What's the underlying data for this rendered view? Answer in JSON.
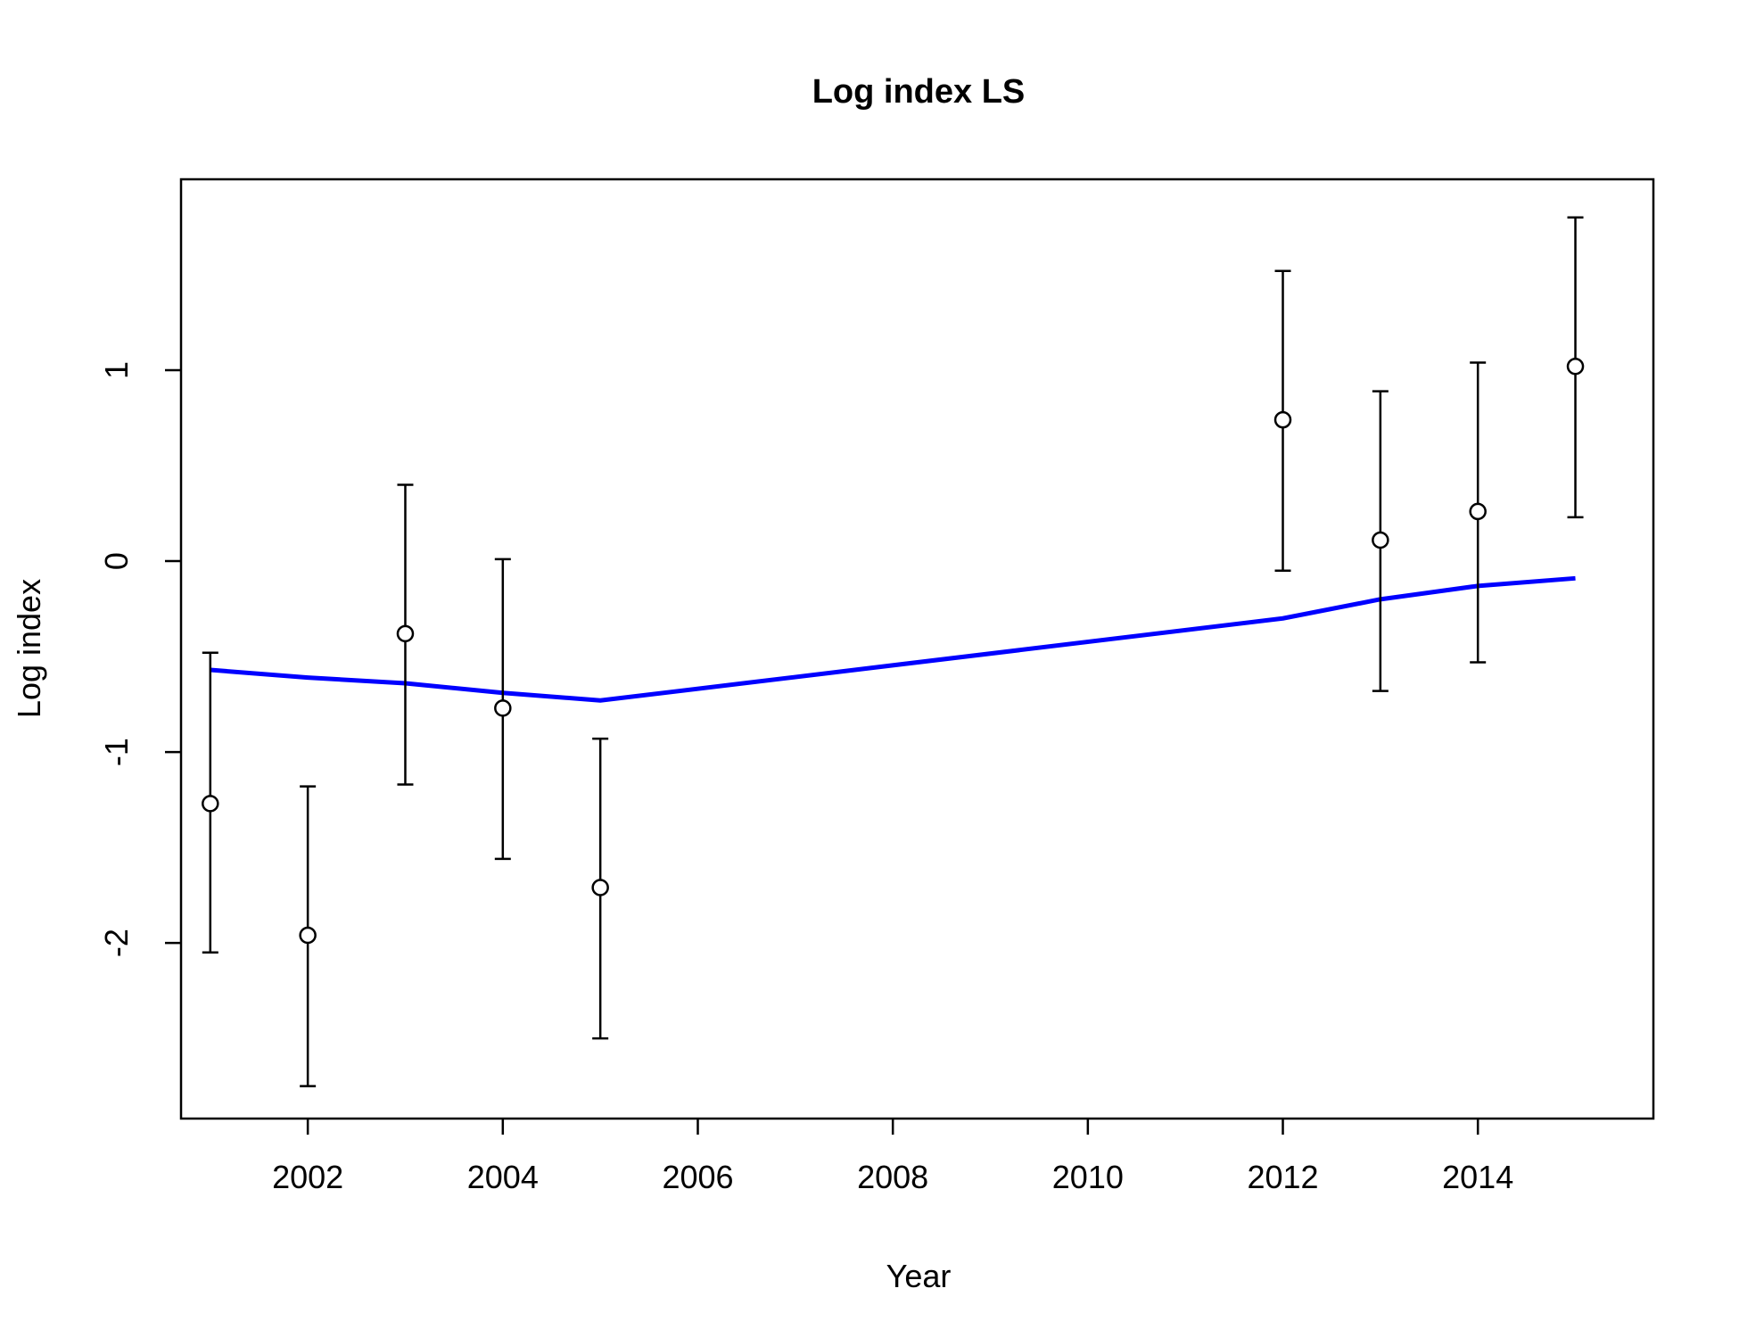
{
  "chart_data": {
    "type": "scatter",
    "title": "Log index LS",
    "xlabel": "Year",
    "ylabel": "Log index",
    "xlim": [
      2000.7,
      2015.8
    ],
    "ylim": [
      -2.92,
      2.0
    ],
    "x_ticks": [
      2002,
      2004,
      2006,
      2008,
      2010,
      2012,
      2014
    ],
    "y_ticks": [
      -2,
      -1,
      0,
      1
    ],
    "grid": false,
    "legend": "none",
    "colors": {
      "observed": "#000000",
      "fitted": "#0000ff"
    },
    "series": [
      {
        "type": "scatter-errorbar",
        "points": [
          {
            "x": 2001,
            "y": -1.27,
            "lower": -2.05,
            "upper": -0.48
          },
          {
            "x": 2002,
            "y": -1.96,
            "lower": -2.75,
            "upper": -1.18
          },
          {
            "x": 2003,
            "y": -0.38,
            "lower": -1.17,
            "upper": 0.4
          },
          {
            "x": 2004,
            "y": -0.77,
            "lower": -1.56,
            "upper": 0.01
          },
          {
            "x": 2005,
            "y": -1.71,
            "lower": -2.5,
            "upper": -0.93
          },
          {
            "x": 2012,
            "y": 0.74,
            "lower": -0.05,
            "upper": 1.52
          },
          {
            "x": 2013,
            "y": 0.11,
            "lower": -0.68,
            "upper": 0.89
          },
          {
            "x": 2014,
            "y": 0.26,
            "lower": -0.53,
            "upper": 1.04
          },
          {
            "x": 2015,
            "y": 1.02,
            "lower": 0.23,
            "upper": 1.8
          }
        ]
      },
      {
        "type": "line",
        "x": [
          2001,
          2002,
          2003,
          2004,
          2005,
          2012,
          2013,
          2014,
          2015
        ],
        "y": [
          -0.57,
          -0.61,
          -0.64,
          -0.69,
          -0.73,
          -0.3,
          -0.2,
          -0.13,
          -0.09
        ]
      }
    ]
  }
}
